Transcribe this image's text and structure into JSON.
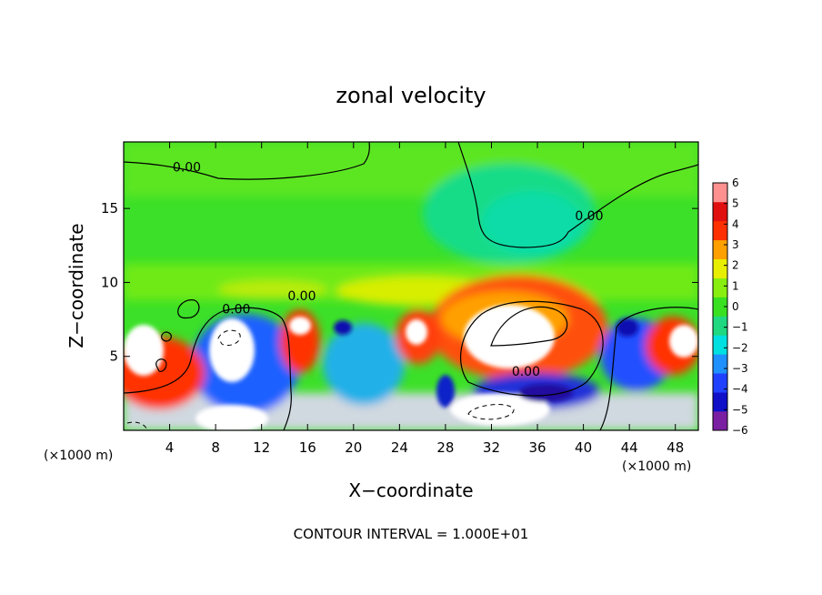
{
  "chart_data": {
    "type": "heatmap",
    "title": "zonal velocity",
    "xlabel": "X−coordinate",
    "ylabel": "Z−coordinate",
    "x_unit_left": "(×1000 m)",
    "x_unit_right": "(×1000 m)",
    "footer": "CONTOUR INTERVAL = 1.000E+01",
    "xlim": [
      0,
      50
    ],
    "ylim": [
      0,
      19.5
    ],
    "x_ticks": [
      4,
      8,
      12,
      16,
      20,
      24,
      28,
      32,
      36,
      40,
      44,
      48
    ],
    "x_tick_labels": [
      "4",
      "8",
      "12",
      "16",
      "20",
      "24",
      "28",
      "32",
      "36",
      "40",
      "44",
      "48"
    ],
    "y_ticks": [
      5,
      10,
      15
    ],
    "y_tick_labels": [
      "5",
      "10",
      "15"
    ],
    "colorbar": {
      "range": [
        -6,
        6
      ],
      "ticks": [
        6,
        5,
        4,
        3,
        2,
        1,
        0,
        -1,
        -2,
        -3,
        -4,
        -5,
        -6
      ],
      "tick_labels": [
        "6",
        "5",
        "4",
        "3",
        "2",
        "1",
        "0",
        "−1",
        "−2",
        "−3",
        "−4",
        "−5",
        "−6"
      ],
      "colors": [
        "#7b1fa2",
        "#1010c8",
        "#2040ff",
        "#1e90ff",
        "#00e0e0",
        "#20d880",
        "#38e020",
        "#88ee10",
        "#e8ee00",
        "#ffa000",
        "#ff3000",
        "#e01010",
        "#ff9090"
      ]
    },
    "contour_labels": [
      {
        "text": "0.00",
        "x": 5.5,
        "y": 17.5
      },
      {
        "text": "0.00",
        "x": 40.5,
        "y": 14.2
      },
      {
        "text": "0.00",
        "x": 35,
        "y": 3.7
      },
      {
        "text": "0.00",
        "x": 15.5,
        "y": 8.8
      },
      {
        "text": "0.00",
        "x": 9.8,
        "y": 7.9
      }
    ]
  }
}
